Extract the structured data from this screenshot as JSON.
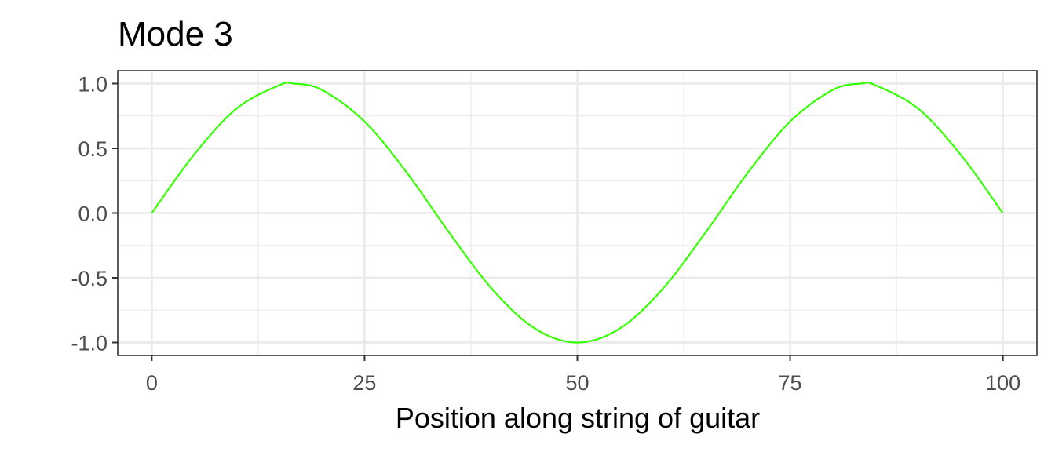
{
  "chart_data": {
    "type": "line",
    "title": "Mode 3",
    "xlabel": "Position along string of guitar",
    "ylabel": "",
    "xlim": [
      -4,
      104
    ],
    "ylim": [
      -1.1,
      1.1
    ],
    "x_ticks": [
      0,
      25,
      50,
      75,
      100
    ],
    "x_tick_labels": [
      "0",
      "25",
      "50",
      "75",
      "100"
    ],
    "y_ticks": [
      1.0,
      0.5,
      0.0,
      -0.5,
      -1.0
    ],
    "y_tick_labels": [
      "1.0",
      "0.5",
      "0.0",
      "-0.5",
      "-1.0"
    ],
    "grid": true,
    "legend": "none",
    "series": [
      {
        "color": "#33ff00",
        "x": [
          0,
          5,
          10,
          15,
          16.67,
          20,
          25,
          30,
          35,
          40,
          45,
          50,
          55,
          60,
          65,
          70,
          75,
          80,
          83.33,
          85,
          90,
          95,
          100
        ],
        "values": [
          0,
          0.454,
          0.809,
          0.988,
          1.0,
          0.951,
          0.707,
          0.309,
          -0.156,
          -0.588,
          -0.891,
          -1.0,
          -0.891,
          -0.588,
          -0.156,
          0.309,
          0.707,
          0.951,
          1.0,
          0.988,
          0.809,
          0.454,
          0
        ]
      }
    ]
  }
}
